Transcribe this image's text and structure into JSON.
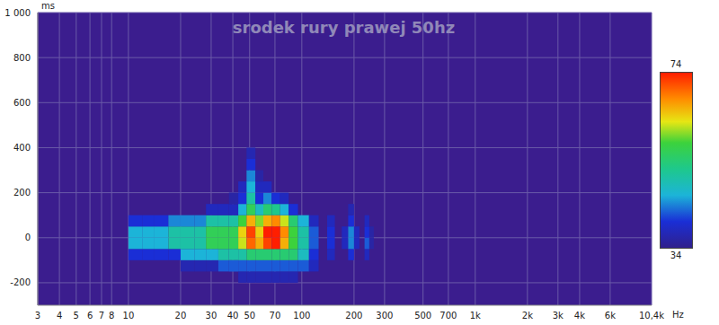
{
  "chart_data": {
    "type": "heatmap",
    "title": "srodek rury prawej 50hz",
    "x_label": "Hz",
    "y_label": "ms",
    "log": "x",
    "grid": true,
    "xlim": [
      3,
      10400
    ],
    "xticks": [
      3,
      4,
      5,
      6,
      7,
      8,
      10,
      20,
      30,
      40,
      50,
      70,
      100,
      200,
      300,
      500,
      700,
      {
        "value": 1000,
        "label": "1k"
      },
      {
        "value": 2000,
        "label": "2k"
      },
      {
        "value": 3000,
        "label": "3k"
      },
      {
        "value": 4000,
        "label": "4k"
      },
      {
        "value": 6000,
        "label": "6k"
      },
      {
        "value": 10400,
        "label": "10,4k"
      }
    ],
    "ylim": [
      -300,
      1000
    ],
    "yticks": [
      -200,
      0,
      200,
      400,
      600,
      800,
      {
        "value": 1000,
        "label": "1 000"
      }
    ],
    "x_edges": [
      10,
      12,
      14,
      17,
      20,
      24,
      28,
      33,
      38,
      43,
      48,
      54,
      60,
      67,
      75,
      84,
      95,
      110,
      125,
      140,
      155,
      170,
      185,
      200,
      215,
      230,
      245,
      260
    ],
    "y_edges": [
      -200,
      -150,
      -100,
      -50,
      0,
      50,
      100,
      150,
      200,
      250,
      300,
      350,
      400
    ],
    "cells": [
      [
        null,
        null,
        null,
        null,
        null,
        null,
        null,
        null,
        null,
        37,
        37,
        37,
        37,
        37,
        37,
        37,
        null,
        null,
        null,
        null,
        null,
        null,
        null,
        null,
        null,
        null,
        null
      ],
      [
        null,
        null,
        null,
        null,
        37,
        37,
        37,
        42,
        42,
        42,
        42,
        42,
        42,
        42,
        42,
        42,
        42,
        38,
        null,
        null,
        null,
        null,
        null,
        null,
        null,
        null,
        null
      ],
      [
        40,
        40,
        40,
        40,
        46,
        46,
        46,
        50,
        50,
        50,
        54,
        54,
        54,
        54,
        54,
        54,
        48,
        40,
        null,
        38,
        null,
        null,
        40,
        null,
        null,
        38,
        null
      ],
      [
        46,
        46,
        46,
        50,
        50,
        50,
        56,
        56,
        56,
        62,
        70,
        66,
        72,
        74,
        66,
        58,
        50,
        42,
        null,
        40,
        null,
        38,
        44,
        38,
        null,
        42,
        36
      ],
      [
        46,
        46,
        46,
        50,
        50,
        50,
        56,
        56,
        56,
        64,
        72,
        64,
        74,
        74,
        68,
        58,
        50,
        42,
        null,
        40,
        null,
        38,
        44,
        38,
        null,
        40,
        36
      ],
      [
        40,
        40,
        40,
        44,
        44,
        44,
        50,
        50,
        50,
        58,
        66,
        60,
        66,
        68,
        62,
        54,
        46,
        38,
        null,
        38,
        null,
        null,
        40,
        null,
        null,
        38,
        null
      ],
      [
        null,
        null,
        null,
        null,
        null,
        null,
        38,
        38,
        38,
        46,
        56,
        48,
        54,
        52,
        46,
        40,
        null,
        null,
        null,
        null,
        null,
        null,
        37,
        null,
        null,
        null,
        null
      ],
      [
        null,
        null,
        null,
        null,
        null,
        null,
        null,
        null,
        36,
        40,
        50,
        40,
        44,
        40,
        38,
        null,
        null,
        null,
        null,
        null,
        null,
        null,
        null,
        null,
        null,
        null,
        null
      ],
      [
        null,
        null,
        null,
        null,
        null,
        null,
        null,
        null,
        null,
        38,
        46,
        38,
        38,
        null,
        null,
        null,
        null,
        null,
        null,
        null,
        null,
        null,
        null,
        null,
        null,
        null,
        null
      ],
      [
        null,
        null,
        null,
        null,
        null,
        null,
        null,
        null,
        null,
        null,
        44,
        36,
        null,
        null,
        null,
        null,
        null,
        null,
        null,
        null,
        null,
        null,
        null,
        null,
        null,
        null,
        null
      ],
      [
        null,
        null,
        null,
        null,
        null,
        null,
        null,
        null,
        null,
        null,
        40,
        null,
        null,
        null,
        null,
        null,
        null,
        null,
        null,
        null,
        null,
        null,
        null,
        null,
        null,
        null,
        null
      ],
      [
        null,
        null,
        null,
        null,
        null,
        null,
        null,
        null,
        null,
        null,
        37,
        null,
        null,
        null,
        null,
        null,
        null,
        null,
        null,
        null,
        null,
        null,
        null,
        null,
        null,
        null,
        null
      ]
    ],
    "colorbar": {
      "range": [
        34,
        74
      ],
      "ticks": [
        34,
        74
      ]
    }
  }
}
